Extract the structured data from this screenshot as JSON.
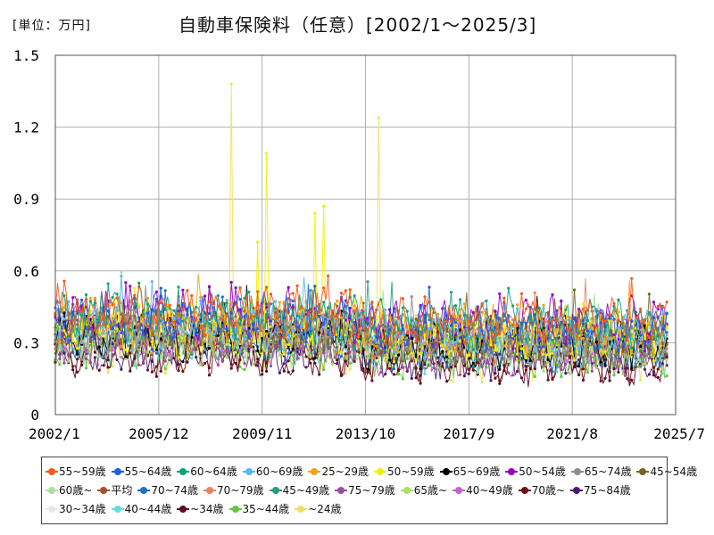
{
  "unit_label": "[単位：万円]",
  "chart_data": {
    "type": "line",
    "title": "自動車保険料（任意）[2002/1～2025/3]",
    "xlabel": "",
    "ylabel": "",
    "x_start": "2002-01",
    "x_end": "2025-07",
    "data_end": "2025-03",
    "ylim": [
      0,
      1.5
    ],
    "y_ticks": [
      "0",
      "0.3",
      "0.6",
      "0.9",
      "1.2",
      "1.5"
    ],
    "x_ticks": [
      "2002/1",
      "2005/12",
      "2009/11",
      "2013/10",
      "2017/9",
      "2021/8",
      "2025/7"
    ],
    "grid": true,
    "legend_position": "bottom",
    "series": [
      {
        "name": "55~59歳",
        "color": "#f25a1c",
        "level": 0.43,
        "sd": 0.06,
        "notes": "upper band"
      },
      {
        "name": "55~64歳",
        "color": "#1f5fe0",
        "level": 0.4,
        "sd": 0.05
      },
      {
        "name": "60~64歳",
        "color": "#10a37a",
        "level": 0.41,
        "sd": 0.05
      },
      {
        "name": "60~69歳",
        "color": "#5ab8f0",
        "level": 0.37,
        "sd": 0.05
      },
      {
        "name": "25~29歳",
        "color": "#f2a416",
        "level": 0.38,
        "sd": 0.07
      },
      {
        "name": "50~59歳",
        "color": "#f2ee00",
        "level": 0.36,
        "sd": 0.07
      },
      {
        "name": "65~69歳",
        "color": "#000000",
        "level": 0.33,
        "sd": 0.05
      },
      {
        "name": "50~54歳",
        "color": "#9400c8",
        "level": 0.42,
        "sd": 0.06
      },
      {
        "name": "65~74歳",
        "color": "#8c8c8c",
        "level": 0.33,
        "sd": 0.05
      },
      {
        "name": "45~54歳",
        "color": "#7a6620",
        "level": 0.36,
        "sd": 0.05
      },
      {
        "name": "60歳~",
        "color": "#a8e0a0",
        "level": 0.34,
        "sd": 0.05
      },
      {
        "name": "平均",
        "color": "#a0522d",
        "level": 0.37,
        "sd": 0.04
      },
      {
        "name": "70~74歳",
        "color": "#1e70c8",
        "level": 0.32,
        "sd": 0.05
      },
      {
        "name": "70~79歳",
        "color": "#e8845a",
        "level": 0.36,
        "sd": 0.05
      },
      {
        "name": "45~49歳",
        "color": "#2a9a82",
        "level": 0.37,
        "sd": 0.05
      },
      {
        "name": "75~79歳",
        "color": "#9a4aa0",
        "level": 0.3,
        "sd": 0.05
      },
      {
        "name": "65歳~",
        "color": "#a8e060",
        "level": 0.31,
        "sd": 0.05
      },
      {
        "name": "40~49歳",
        "color": "#c860d0",
        "level": 0.35,
        "sd": 0.05
      },
      {
        "name": "70歳~",
        "color": "#6e1010",
        "level": 0.27,
        "sd": 0.05
      },
      {
        "name": "75~84歳",
        "color": "#4a1a6a",
        "level": 0.28,
        "sd": 0.05
      },
      {
        "name": "30~34歳",
        "color": "#e8e8f0",
        "level": 0.3,
        "sd": 0.05
      },
      {
        "name": "40~44歳",
        "color": "#60e0d0",
        "level": 0.31,
        "sd": 0.05
      },
      {
        "name": "~34歳",
        "color": "#5a0a2a",
        "level": 0.25,
        "sd": 0.05
      },
      {
        "name": "35~44歳",
        "color": "#60c840",
        "level": 0.29,
        "sd": 0.05
      },
      {
        "name": "~24歳",
        "color": "#f0e060",
        "level": 0.3,
        "sd": 0.09,
        "peaks": [
          {
            "x": "2008-09",
            "y": 1.38
          },
          {
            "x": "2014-04",
            "y": 1.24
          }
        ]
      }
    ],
    "highlighted_peaks": [
      {
        "series": "50~59歳",
        "x": "2010-01",
        "y": 1.09
      },
      {
        "series": "50~59歳",
        "x": "2009-09",
        "y": 0.72
      },
      {
        "series": "50~59歳",
        "x": "2011-11",
        "y": 0.84
      },
      {
        "series": "50~59歳",
        "x": "2012-03",
        "y": 0.87
      },
      {
        "series": "~24歳",
        "x": "2008-09",
        "y": 1.38
      },
      {
        "series": "~24歳",
        "x": "2014-04",
        "y": 1.24
      }
    ]
  }
}
